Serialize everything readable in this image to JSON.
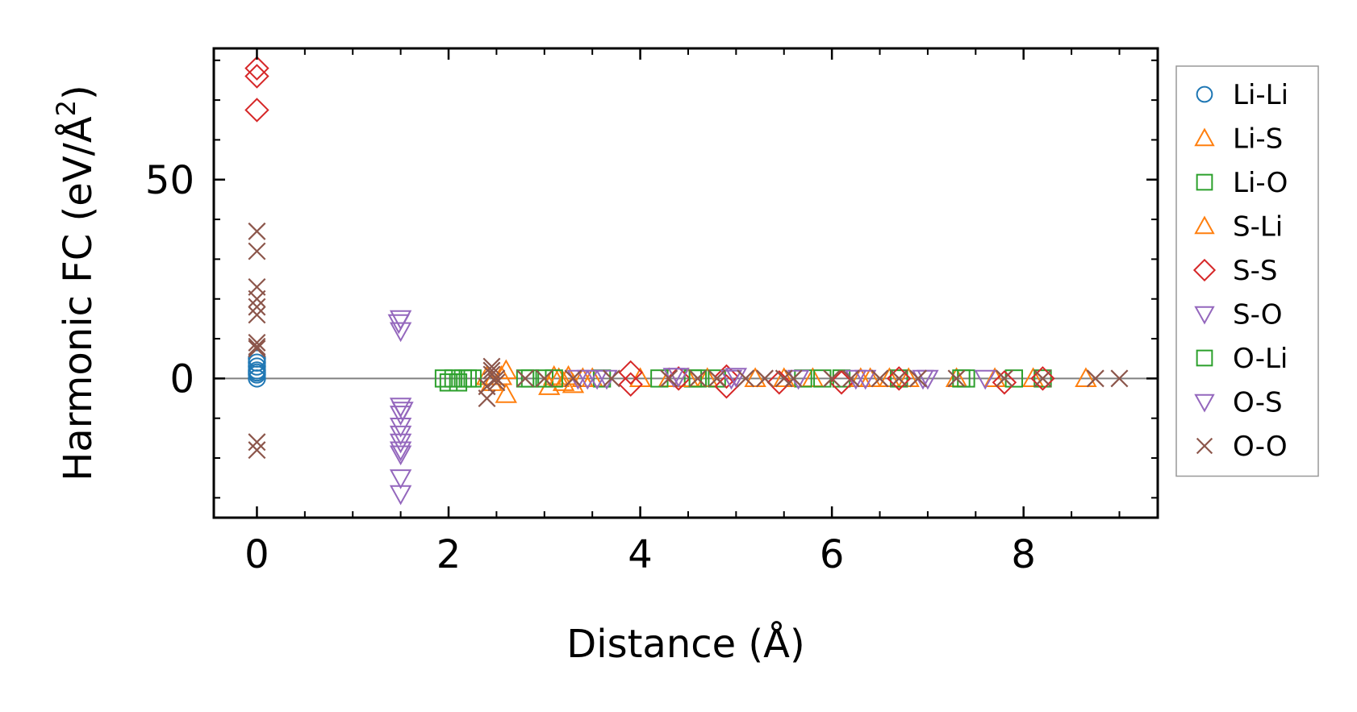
{
  "chart_data": {
    "type": "scatter",
    "xlabel": "Distance (Å)",
    "ylabel_main": "Harmonic FC (eV/Å",
    "ylabel_sup": "2",
    "ylabel_close": ")",
    "xlim": [
      -0.45,
      9.4
    ],
    "ylim": [
      -35,
      83
    ],
    "xticks": [
      0,
      2,
      4,
      6,
      8
    ],
    "yticks": [
      0,
      50
    ],
    "grid": false,
    "legend_position": "outside-right",
    "zero_line": true,
    "series": [
      {
        "name": "Li-Li",
        "marker": "circle",
        "color": "#1f77b4",
        "x": [
          0,
          0,
          0,
          0,
          0,
          0,
          0
        ],
        "y": [
          0,
          1,
          2,
          3,
          4,
          5,
          1.5
        ]
      },
      {
        "name": "Li-S",
        "marker": "triangle-up",
        "color": "#ff7f0e",
        "x": [
          2.4,
          2.45,
          2.6,
          2.6,
          3.05,
          3.1,
          3.2,
          3.25,
          3.3,
          3.5,
          4.0,
          4.3,
          4.7,
          5.2,
          5.8,
          6.3,
          6.6,
          6.8,
          7.3,
          7.7,
          8.1,
          8.65
        ],
        "y": [
          0.5,
          -1,
          2,
          -4,
          -2,
          0.5,
          -1,
          0.5,
          -1.5,
          0,
          0,
          0,
          0,
          0,
          0,
          0,
          0,
          0,
          0,
          0,
          0,
          0
        ]
      },
      {
        "name": "Li-O",
        "marker": "square",
        "color": "#2ca02c",
        "x": [
          1.95,
          2.0,
          2.05,
          2.1,
          2.15,
          2.2,
          2.8,
          3.0,
          3.6,
          4.2,
          4.55,
          4.8,
          5.7,
          6.1,
          6.7,
          7.35,
          7.9,
          8.2
        ],
        "y": [
          0,
          -1,
          0,
          -1,
          0,
          0,
          0,
          0,
          0,
          0,
          0,
          0,
          0,
          0,
          0,
          0,
          0,
          0
        ]
      },
      {
        "name": "S-Li",
        "marker": "triangle-up",
        "color": "#ff7f0e",
        "x": [
          2.55,
          3.15,
          3.4,
          4.5,
          5.5,
          6.4
        ],
        "y": [
          0.5,
          0,
          0,
          0,
          0,
          0
        ]
      },
      {
        "name": "S-S",
        "marker": "diamond",
        "color": "#d62728",
        "x": [
          0,
          0,
          0,
          3.9,
          3.9,
          4.4,
          4.9,
          4.9,
          5.45,
          6.1,
          6.7,
          7.8,
          8.2
        ],
        "y": [
          78,
          76,
          67.5,
          1.5,
          -1.5,
          0,
          0.5,
          -2,
          -1,
          -1,
          0,
          -1,
          0
        ]
      },
      {
        "name": "S-O",
        "marker": "triangle-down",
        "color": "#9467bd",
        "x": [
          1.5,
          1.5,
          1.5,
          1.5,
          1.5,
          1.5,
          1.5,
          1.5,
          1.5,
          1.5,
          1.5,
          3.45,
          3.55,
          4.35,
          5.0,
          5.65,
          6.35,
          7.0
        ],
        "y": [
          15,
          12,
          -7,
          -9,
          -12,
          -14,
          -16,
          -18,
          -19,
          -25,
          -29,
          0,
          0,
          0.5,
          0.5,
          0,
          0,
          0
        ]
      },
      {
        "name": "O-Li",
        "marker": "square",
        "color": "#2ca02c",
        "x": [
          2.25,
          2.85,
          3.1,
          4.6,
          5.9,
          7.4
        ],
        "y": [
          0,
          0,
          0,
          0,
          0,
          0
        ]
      },
      {
        "name": "O-S",
        "marker": "triangle-down",
        "color": "#9467bd",
        "x": [
          1.48,
          1.52,
          3.35,
          3.65,
          4.4,
          4.95,
          6.25,
          6.95,
          7.6
        ],
        "y": [
          14,
          -8,
          0,
          0,
          0.5,
          0,
          0,
          0,
          0
        ]
      },
      {
        "name": "O-O",
        "marker": "x",
        "color": "#8c564b",
        "x": [
          0,
          0,
          0,
          0,
          0,
          0,
          0,
          0,
          0,
          0,
          0,
          2.4,
          2.4,
          2.45,
          2.45,
          2.45,
          2.5,
          2.5,
          2.8,
          3.0,
          3.3,
          3.7,
          4.3,
          4.6,
          4.8,
          5.1,
          5.3,
          5.5,
          5.6,
          6.0,
          6.2,
          6.5,
          6.7,
          6.9,
          7.3,
          7.8,
          8.2,
          8.75,
          9.0
        ],
        "y": [
          37,
          32,
          23,
          20,
          18,
          16,
          9,
          8,
          7.5,
          -16,
          -18,
          -5,
          -2,
          3,
          2,
          1,
          0,
          -1,
          0,
          0,
          0,
          0,
          0,
          0,
          0,
          0,
          0,
          0,
          0,
          0,
          0,
          0,
          0,
          0,
          0,
          0,
          0,
          0,
          0
        ]
      }
    ]
  }
}
